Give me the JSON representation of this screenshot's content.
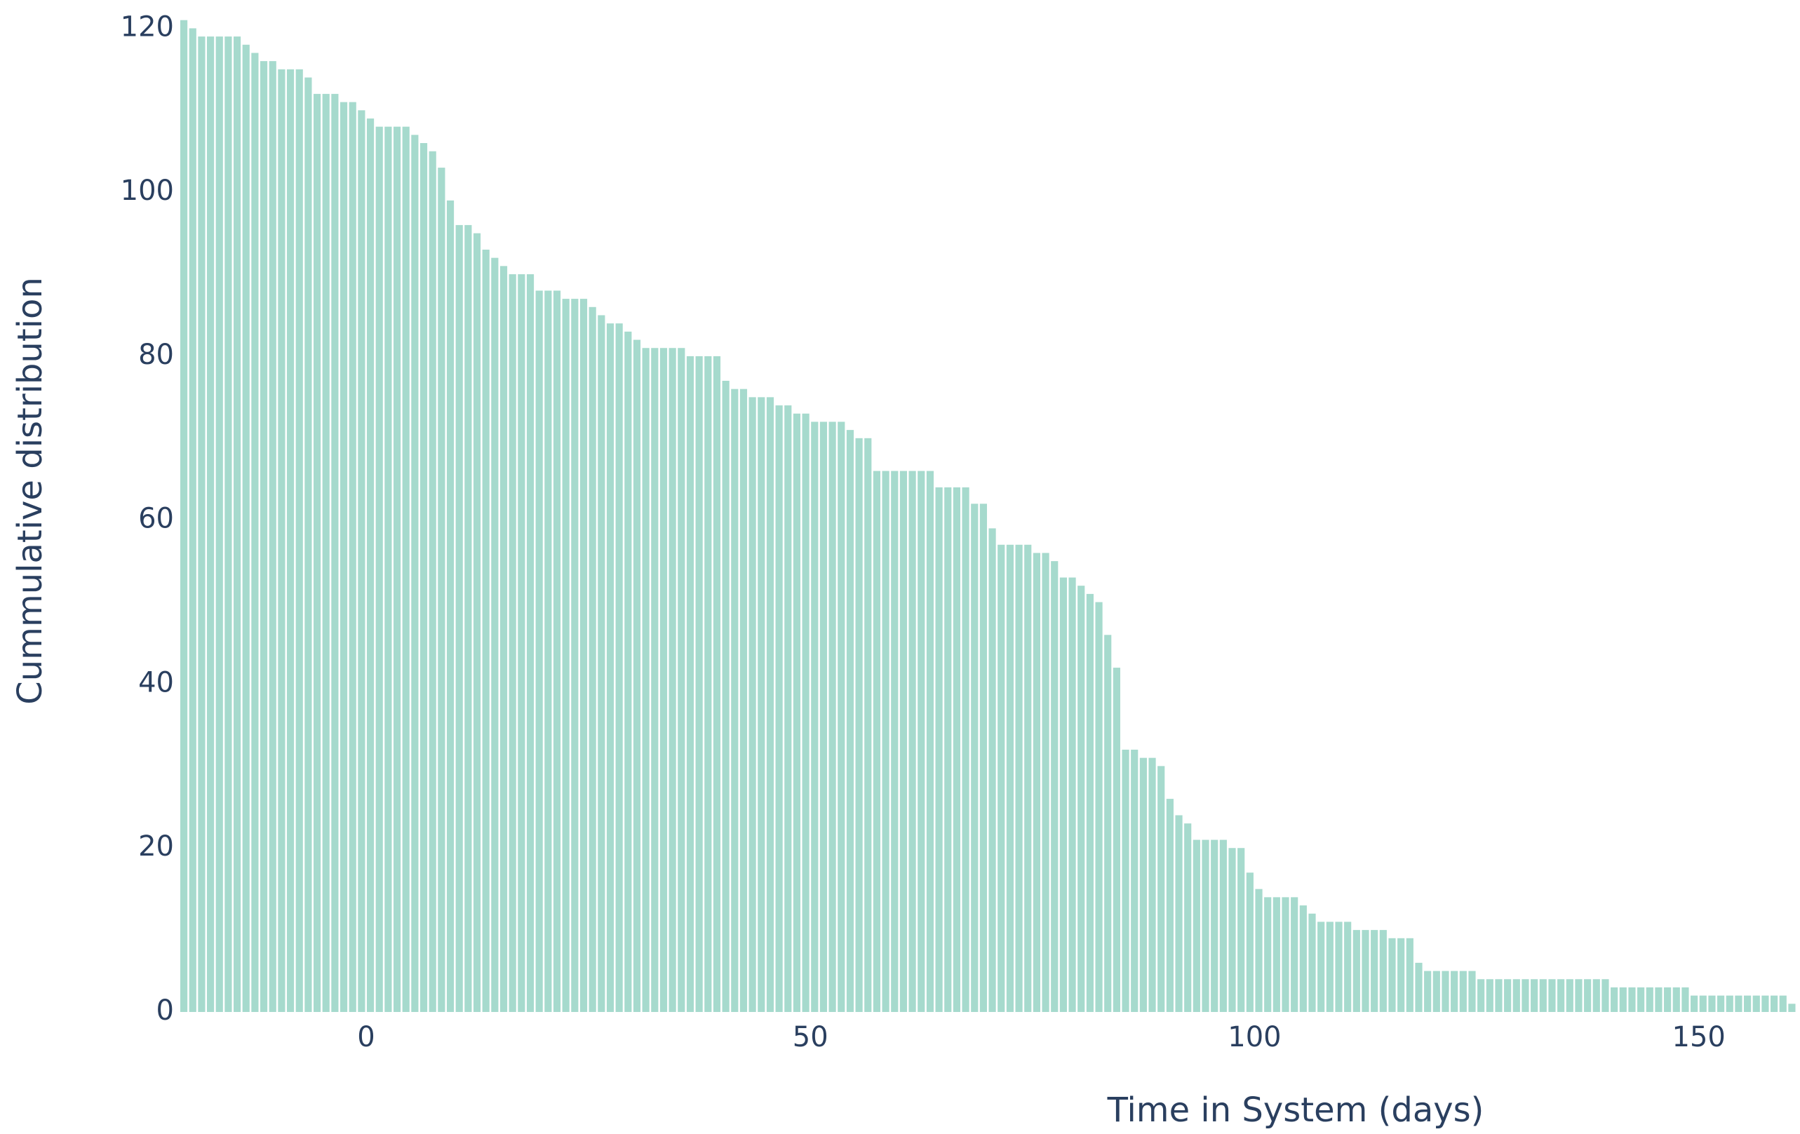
{
  "chart_data": {
    "type": "histogram",
    "xlabel": "Time in System (days)",
    "ylabel": "Cummulative distribution",
    "color": "#a6dacd",
    "bins": [
      -21,
      -20,
      -19,
      -18,
      -17,
      -16,
      -15,
      -14,
      -13,
      -12,
      -11,
      -10,
      -9,
      -8,
      -7,
      -6,
      -5,
      -4,
      -3,
      -2,
      -1,
      0,
      1,
      2,
      3,
      4,
      5,
      6,
      7,
      8,
      9,
      10,
      11,
      12,
      13,
      14,
      15,
      16,
      17,
      18,
      19,
      20,
      21,
      22,
      23,
      24,
      25,
      26,
      27,
      28,
      29,
      30,
      31,
      32,
      33,
      34,
      35,
      36,
      37,
      38,
      39,
      40,
      41,
      42,
      43,
      44,
      45,
      46,
      47,
      48,
      49,
      50,
      51,
      52,
      53,
      54,
      55,
      56,
      57,
      58,
      59,
      60,
      61,
      62,
      63,
      64,
      65,
      66,
      67,
      68,
      69,
      70,
      71,
      72,
      73,
      74,
      75,
      76,
      77,
      78,
      79,
      80,
      81,
      82,
      83,
      84,
      85,
      86,
      87,
      88,
      89,
      90,
      91,
      92,
      93,
      94,
      95,
      96,
      97,
      98,
      99,
      100,
      101,
      102,
      103,
      104,
      105,
      106,
      107,
      108,
      109,
      110,
      111,
      112,
      113,
      114,
      115,
      116,
      117,
      118,
      119,
      120,
      121,
      122,
      123,
      124,
      125,
      126,
      127,
      128,
      129,
      130,
      131,
      132,
      133,
      134,
      135,
      136,
      137,
      138,
      139,
      140,
      141,
      142,
      143,
      144,
      145,
      146,
      147,
      148,
      149,
      150,
      151,
      152,
      153,
      154,
      155,
      156,
      157,
      158,
      159,
      160,
      161
    ],
    "values": [
      121,
      120,
      119,
      119,
      119,
      119,
      119,
      118,
      117,
      116,
      116,
      115,
      115,
      115,
      114,
      112,
      112,
      112,
      111,
      111,
      110,
      109,
      108,
      108,
      108,
      108,
      107,
      106,
      105,
      103,
      99,
      96,
      96,
      95,
      93,
      92,
      91,
      90,
      90,
      90,
      88,
      88,
      88,
      87,
      87,
      87,
      86,
      85,
      84,
      84,
      83,
      82,
      81,
      81,
      81,
      81,
      81,
      80,
      80,
      80,
      80,
      77,
      76,
      76,
      75,
      75,
      75,
      74,
      74,
      73,
      73,
      72,
      72,
      72,
      72,
      71,
      70,
      70,
      66,
      66,
      66,
      66,
      66,
      66,
      66,
      64,
      64,
      64,
      64,
      62,
      62,
      59,
      57,
      57,
      57,
      57,
      56,
      56,
      55,
      53,
      53,
      52,
      51,
      50,
      46,
      42,
      32,
      32,
      31,
      31,
      30,
      26,
      24,
      23,
      21,
      21,
      21,
      21,
      20,
      20,
      17,
      15,
      14,
      14,
      14,
      14,
      13,
      12,
      11,
      11,
      11,
      11,
      10,
      10,
      10,
      10,
      9,
      9,
      9,
      6,
      5,
      5,
      5,
      5,
      5,
      5,
      4,
      4,
      4,
      4,
      4,
      4,
      4,
      4,
      4,
      4,
      4,
      4,
      4,
      4,
      4,
      3,
      3,
      3,
      3,
      3,
      3,
      3,
      3,
      3,
      2,
      2,
      2,
      2,
      2,
      2,
      2,
      2,
      2,
      2,
      2,
      1
    ],
    "xlim": [
      -21,
      161
    ],
    "ylim": [
      0,
      122
    ],
    "xticks": [
      0,
      50,
      100,
      150
    ],
    "yticks": [
      0,
      20,
      40,
      60,
      80,
      100,
      120
    ]
  }
}
